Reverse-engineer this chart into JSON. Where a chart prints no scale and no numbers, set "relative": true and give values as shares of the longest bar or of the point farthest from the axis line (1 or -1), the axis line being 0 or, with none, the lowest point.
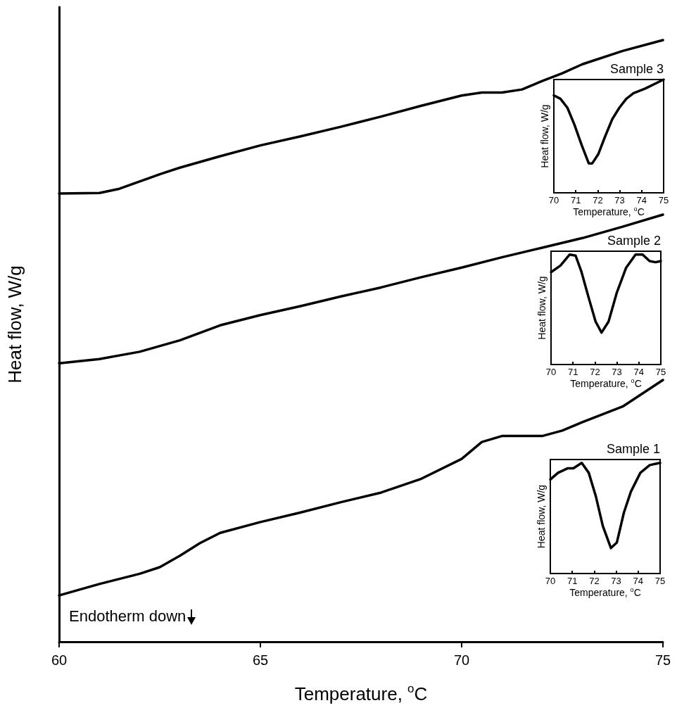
{
  "chart_data": [
    {
      "type": "line",
      "xlabel": "Temperature, $^{o}$C",
      "ylabel": "Heat flow, W/g",
      "relative": true,
      "xlim": [
        60,
        75
      ],
      "xticks": [
        60,
        65,
        70,
        75
      ],
      "tick_labels": "x",
      "marker": "none",
      "line_style": "solid",
      "annotations": [
        "Endotherm down"
      ],
      "series": [
        {
          "color": "#000000",
          "x": [
            60,
            61,
            61.5,
            62,
            62.5,
            63,
            64,
            65,
            66,
            67,
            68,
            69,
            70,
            70.5,
            71,
            71.5,
            72,
            72.5,
            73,
            74,
            75
          ],
          "values": [
            0.745,
            0.746,
            0.753,
            0.765,
            0.777,
            0.788,
            0.807,
            0.825,
            0.84,
            0.856,
            0.873,
            0.891,
            0.908,
            0.913,
            0.913,
            0.918,
            0.932,
            0.945,
            0.96,
            0.982,
            1.0
          ]
        },
        {
          "color": "#000000",
          "x": [
            60,
            61,
            62,
            63,
            64,
            65,
            66,
            67,
            68,
            69,
            70,
            71,
            72,
            73,
            74,
            75
          ],
          "values": [
            0.463,
            0.47,
            0.482,
            0.501,
            0.526,
            0.543,
            0.558,
            0.574,
            0.589,
            0.606,
            0.622,
            0.639,
            0.655,
            0.671,
            0.69,
            0.71
          ]
        },
        {
          "color": "#000000",
          "x": [
            60,
            61,
            62,
            62.5,
            63,
            63.5,
            64,
            65,
            66,
            67,
            68,
            69,
            70,
            70.5,
            71,
            72,
            72.5,
            73,
            74,
            75
          ],
          "values": [
            0.077,
            0.096,
            0.113,
            0.124,
            0.143,
            0.164,
            0.181,
            0.199,
            0.215,
            0.232,
            0.248,
            0.271,
            0.304,
            0.332,
            0.342,
            0.342,
            0.351,
            0.365,
            0.391,
            0.435
          ]
        }
      ]
    },
    {
      "type": "line",
      "title": "Sample 3",
      "xlabel": "Temperature, $^{o}$C",
      "ylabel": "Heat flow, W/g",
      "relative": true,
      "xlim": [
        70,
        75
      ],
      "xticks": [
        70,
        71,
        72,
        73,
        74,
        75
      ],
      "tick_labels": "x",
      "marker": "none",
      "line_style": "solid",
      "series": [
        {
          "color": "#000000",
          "x": [
            70,
            70.3,
            70.62,
            70.94,
            71.27,
            71.59,
            71.75,
            72.02,
            72.34,
            72.66,
            72.98,
            73.3,
            73.63,
            74.16,
            75
          ],
          "values": [
            0.86,
            0.83,
            0.75,
            0.6,
            0.42,
            0.26,
            0.26,
            0.34,
            0.5,
            0.65,
            0.75,
            0.83,
            0.88,
            0.92,
            1.0
          ]
        }
      ]
    },
    {
      "type": "line",
      "title": "Sample 2",
      "xlabel": "Temperature, $^{o}$C",
      "ylabel": "Heat flow, W/g",
      "relative": true,
      "xlim": [
        70,
        75
      ],
      "xticks": [
        70,
        71,
        72,
        73,
        74,
        75
      ],
      "tick_labels": "x",
      "marker": "none",
      "line_style": "solid",
      "series": [
        {
          "color": "#000000",
          "x": [
            70,
            70.43,
            70.85,
            71.12,
            71.39,
            71.71,
            72.03,
            72.3,
            72.62,
            72.99,
            73.42,
            73.85,
            74.17,
            74.49,
            74.76,
            75
          ],
          "values": [
            0.84,
            0.9,
            1.0,
            0.99,
            0.84,
            0.61,
            0.39,
            0.29,
            0.39,
            0.65,
            0.88,
            1.0,
            1.0,
            0.94,
            0.93,
            0.94
          ]
        }
      ]
    },
    {
      "type": "line",
      "title": "Sample 1",
      "xlabel": "Temperature, $^{o}$C",
      "ylabel": "Heat flow, W/g",
      "relative": true,
      "xlim": [
        70,
        75
      ],
      "xticks": [
        70,
        71,
        72,
        73,
        74,
        75
      ],
      "tick_labels": "x",
      "marker": "none",
      "line_style": "solid",
      "series": [
        {
          "color": "#000000",
          "x": [
            70,
            70.35,
            70.78,
            71.05,
            71.43,
            71.75,
            72.07,
            72.39,
            72.76,
            73.03,
            73.35,
            73.67,
            74.1,
            74.53,
            75
          ],
          "values": [
            0.85,
            0.91,
            0.95,
            0.95,
            1.0,
            0.91,
            0.7,
            0.43,
            0.23,
            0.28,
            0.55,
            0.74,
            0.91,
            0.98,
            1.0
          ]
        }
      ]
    }
  ]
}
